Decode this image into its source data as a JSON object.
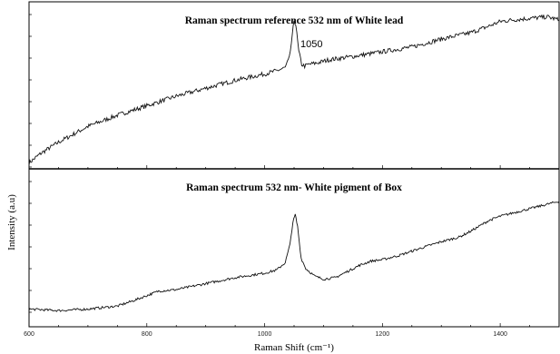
{
  "chart_data": [
    {
      "type": "line",
      "title": "Raman spectrum reference 532 nm of White lead",
      "xlim": [
        600,
        1500
      ],
      "ylim": [
        0,
        1
      ],
      "annotations": [
        {
          "text": "1050",
          "x": 1050
        }
      ],
      "series": [
        {
          "x": [
            600,
            620,
            650,
            700,
            750,
            800,
            850,
            900,
            950,
            1000,
            1020,
            1035,
            1042,
            1047,
            1050,
            1053,
            1058,
            1063,
            1068,
            1075,
            1090,
            1110,
            1130,
            1150,
            1200,
            1250,
            1300,
            1350,
            1380,
            1400,
            1420,
            1450,
            1480,
            1500
          ],
          "values": [
            0.02,
            0.08,
            0.15,
            0.25,
            0.32,
            0.38,
            0.44,
            0.49,
            0.54,
            0.58,
            0.6,
            0.62,
            0.68,
            0.82,
            0.92,
            0.89,
            0.72,
            0.64,
            0.63,
            0.64,
            0.65,
            0.67,
            0.68,
            0.69,
            0.72,
            0.75,
            0.8,
            0.84,
            0.88,
            0.91,
            0.92,
            0.93,
            0.94,
            0.92
          ]
        }
      ]
    },
    {
      "type": "line",
      "title": "Raman spectrum 532 nm- White pigment of Box",
      "xlabel": "Raman Shift (cm⁻¹)",
      "xticks": [
        "600",
        "800",
        "1000",
        "1200",
        "1400"
      ],
      "xlim": [
        600,
        1500
      ],
      "ylim": [
        0,
        1
      ],
      "series": [
        {
          "x": [
            600,
            650,
            700,
            750,
            780,
            800,
            820,
            850,
            900,
            950,
            1000,
            1020,
            1035,
            1043,
            1048,
            1052,
            1056,
            1062,
            1070,
            1085,
            1100,
            1120,
            1140,
            1160,
            1180,
            1200,
            1230,
            1260,
            1300,
            1330,
            1350,
            1380,
            1400,
            1430,
            1460,
            1500
          ],
          "values": [
            0.1,
            0.09,
            0.1,
            0.12,
            0.16,
            0.19,
            0.22,
            0.23,
            0.27,
            0.31,
            0.34,
            0.36,
            0.41,
            0.53,
            0.68,
            0.73,
            0.65,
            0.44,
            0.37,
            0.32,
            0.3,
            0.31,
            0.35,
            0.39,
            0.42,
            0.43,
            0.46,
            0.5,
            0.55,
            0.58,
            0.62,
            0.69,
            0.72,
            0.75,
            0.78,
            0.82
          ]
        }
      ]
    }
  ],
  "ylabel": "Intensity (a.u)"
}
